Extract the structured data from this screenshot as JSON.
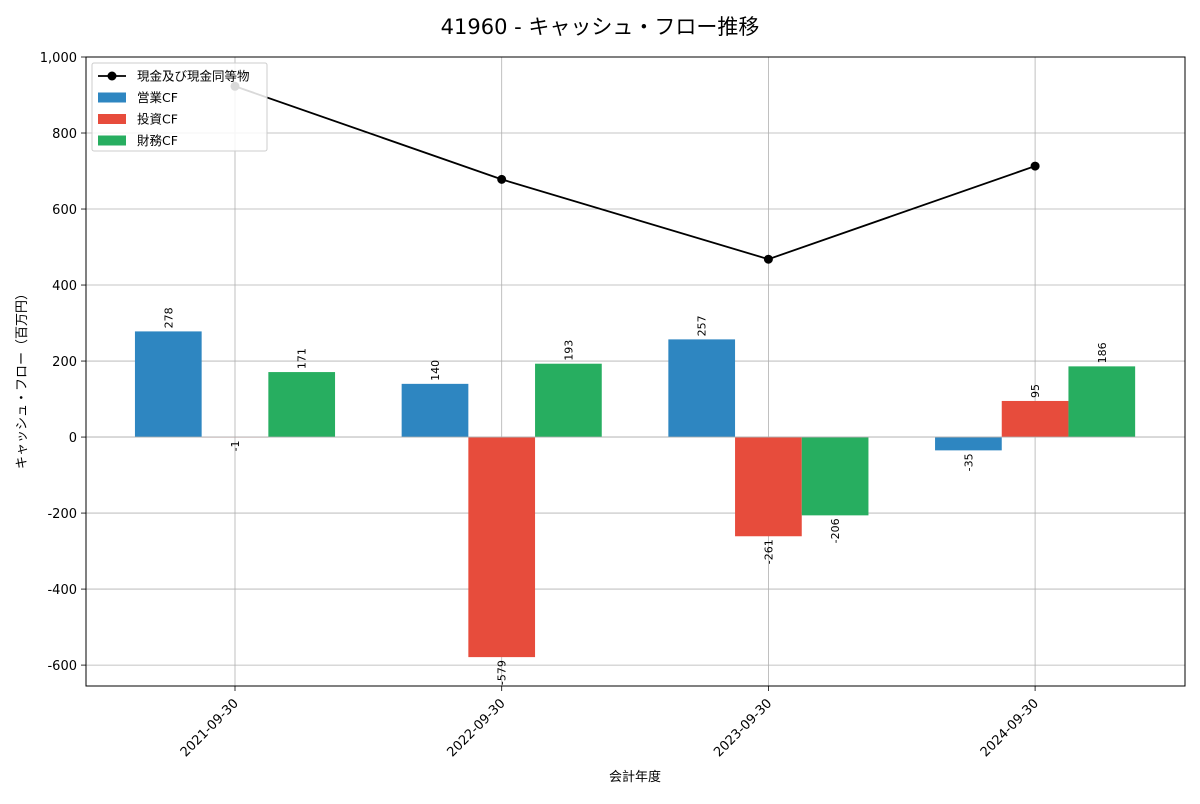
{
  "chart_data": {
    "type": "bar",
    "title": "41960 - キャッシュ・フロー推移",
    "xlabel": "会計年度",
    "ylabel": "キャッシュ・フロー（百万円）",
    "categories": [
      "2021-09-30",
      "2022-09-30",
      "2023-09-30",
      "2024-09-30"
    ],
    "ylim": [
      -655,
      1000
    ],
    "yticks": [
      -600,
      -400,
      -200,
      0,
      200,
      400,
      600,
      800,
      1000
    ],
    "ytick_labels": [
      "-600",
      "-400",
      "-200",
      "0",
      "200",
      "400",
      "600",
      "800",
      "1,000"
    ],
    "grid": true,
    "legend_position": "top-left",
    "line_series": {
      "name": "現金及び現金同等物",
      "values": [
        923,
        678,
        468,
        713
      ],
      "color": "#000000"
    },
    "series": [
      {
        "name": "営業CF",
        "values": [
          278,
          140,
          257,
          -35
        ],
        "labels": [
          "278",
          "140",
          "257",
          "-35"
        ],
        "color": "#2e86c1"
      },
      {
        "name": "投資CF",
        "values": [
          -1,
          -579,
          -261,
          95
        ],
        "labels": [
          "-1",
          "-579",
          "-261",
          "95"
        ],
        "color": "#e74c3c"
      },
      {
        "name": "財務CF",
        "values": [
          171,
          193,
          -206,
          186
        ],
        "labels": [
          "171",
          "193",
          "-206",
          "186"
        ],
        "color": "#27ae60"
      }
    ]
  }
}
